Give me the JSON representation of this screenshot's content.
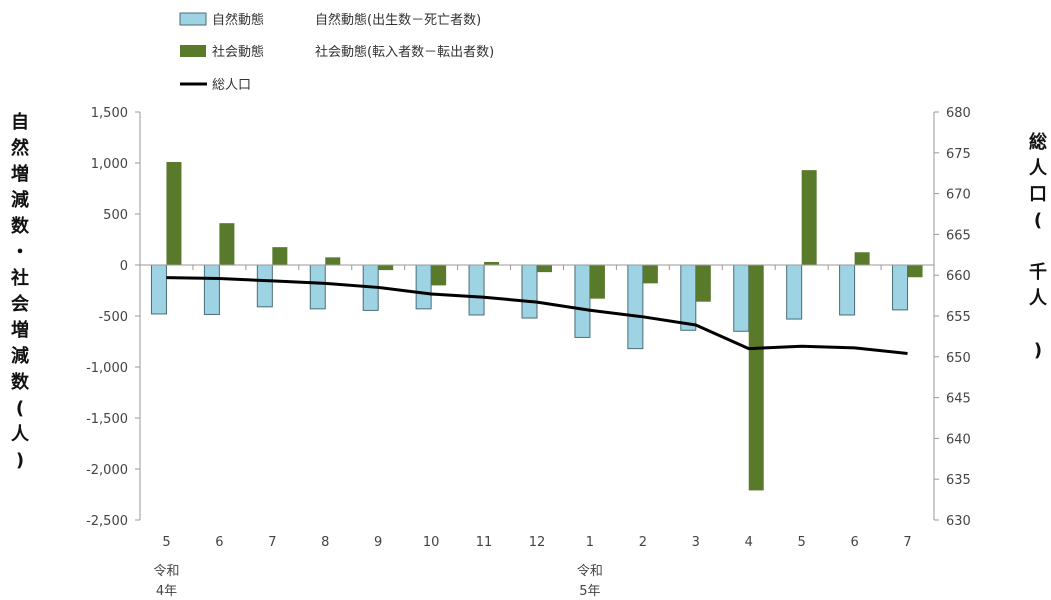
{
  "chart_data": {
    "type": "bar",
    "categories": [
      "5",
      "6",
      "7",
      "8",
      "9",
      "10",
      "11",
      "12",
      "1",
      "2",
      "3",
      "4",
      "5",
      "6",
      "7"
    ],
    "era_labels": [
      {
        "category_index": 0,
        "lines": [
          "令和",
          "4年"
        ]
      },
      {
        "category_index": 8,
        "lines": [
          "令和",
          "5年"
        ]
      }
    ],
    "series": [
      {
        "name": "自然動態",
        "legend_desc": "自然動態(出生数－死亡者数)",
        "type": "bar",
        "axis": "left",
        "color": "#9ed3e3",
        "values": [
          -480,
          -485,
          -410,
          -430,
          -445,
          -430,
          -490,
          -520,
          -710,
          -820,
          -640,
          -650,
          -530,
          -490,
          -440
        ]
      },
      {
        "name": "社会動態",
        "legend_desc": "社会動態(転入者数－転出者数)",
        "type": "bar",
        "axis": "left",
        "color": "#5a7a2b",
        "values": [
          1010,
          410,
          175,
          75,
          -50,
          -200,
          30,
          -70,
          -330,
          -180,
          -360,
          -2210,
          930,
          125,
          -120
        ]
      },
      {
        "name": "総人口",
        "legend_desc": "",
        "type": "line",
        "axis": "right",
        "color": "#000000",
        "values": [
          659.7,
          659.6,
          659.3,
          659.0,
          658.5,
          657.7,
          657.3,
          656.7,
          655.7,
          654.9,
          653.9,
          651.0,
          651.3,
          651.1,
          650.4
        ]
      }
    ],
    "ylabel": "自然増減数・社会増減数(人)",
    "y2label": "総人口( 千人 )",
    "ylim": [
      -2500,
      1500
    ],
    "yticks": [
      1500,
      1000,
      500,
      0,
      -500,
      -1000,
      -1500,
      -2000,
      -2500
    ],
    "yticklabels": [
      "1,500",
      "1,000",
      "500",
      "0",
      "-500",
      "-1,000",
      "-1,500",
      "-2,000",
      "-2,500"
    ],
    "y2lim": [
      630,
      680
    ],
    "y2ticks": [
      680,
      675,
      670,
      665,
      660,
      655,
      650,
      645,
      640,
      635,
      630
    ],
    "legend": "top-left",
    "grid": false
  }
}
